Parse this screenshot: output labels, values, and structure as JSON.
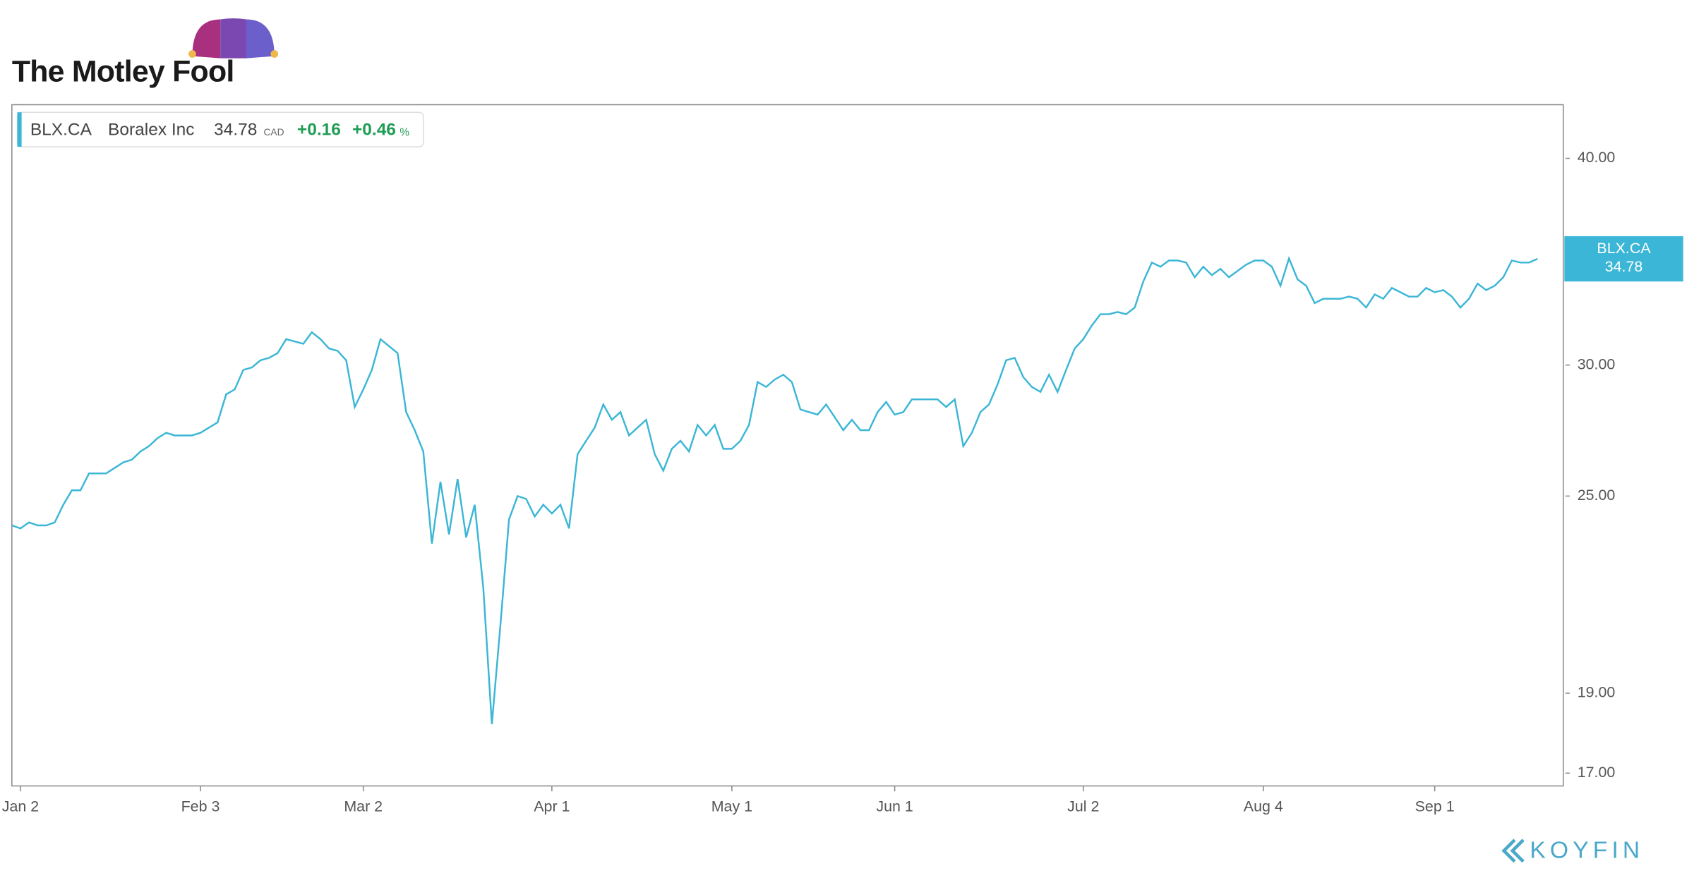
{
  "brand": "The Motley Fool",
  "footer": "KOYFIN",
  "chart_data": {
    "type": "line",
    "legend": {
      "name": "Boralex Inc",
      "currency": "CAD",
      "change": "+0.16",
      "change_pct": "+0.46",
      "pct_sign": "%"
    },
    "series": [
      {
        "name": "BLX.CA",
        "color": "#3bb6d6",
        "values": [
          24.0,
          23.9,
          24.1,
          24.0,
          24.0,
          24.1,
          24.7,
          25.2,
          25.2,
          25.8,
          25.8,
          25.8,
          26.0,
          26.2,
          26.3,
          26.6,
          26.8,
          27.1,
          27.3,
          27.2,
          27.2,
          27.2,
          27.3,
          27.5,
          27.7,
          28.8,
          29.0,
          29.8,
          29.9,
          30.2,
          30.3,
          30.5,
          31.1,
          31.0,
          30.9,
          31.4,
          31.1,
          30.7,
          30.6,
          30.2,
          28.3,
          29.0,
          29.8,
          31.1,
          30.8,
          30.5,
          28.1,
          27.4,
          26.6,
          23.4,
          25.5,
          23.7,
          25.6,
          23.6,
          24.7,
          22.0,
          18.2,
          20.9,
          24.2,
          25.0,
          24.9,
          24.3,
          24.7,
          24.4,
          24.7,
          23.9,
          26.5,
          27.0,
          27.5,
          28.4,
          27.8,
          28.1,
          27.2,
          27.5,
          27.8,
          26.5,
          25.9,
          26.7,
          27.0,
          26.6,
          27.6,
          27.2,
          27.6,
          26.7,
          26.7,
          27.0,
          27.6,
          29.3,
          29.1,
          29.4,
          29.6,
          29.3,
          28.2,
          28.1,
          28.0,
          28.4,
          27.9,
          27.4,
          27.8,
          27.4,
          27.4,
          28.1,
          28.5,
          28.0,
          28.1,
          28.6,
          28.6,
          28.6,
          28.6,
          28.3,
          28.6,
          26.8,
          27.3,
          28.1,
          28.4,
          29.2,
          30.2,
          30.3,
          29.5,
          29.1,
          28.9,
          29.6,
          28.9,
          29.8,
          30.7,
          31.1,
          31.7,
          32.2,
          32.2,
          32.3,
          32.2,
          32.5,
          33.7,
          34.6,
          34.4,
          34.7,
          34.7,
          34.6,
          33.9,
          34.4,
          34.0,
          34.3,
          33.9,
          34.2,
          34.5,
          34.7,
          34.7,
          34.4,
          33.5,
          34.8,
          33.8,
          33.5,
          32.7,
          32.9,
          32.9,
          32.9,
          33.0,
          32.9,
          32.5,
          33.1,
          32.9,
          33.4,
          33.2,
          33.0,
          33.0,
          33.4,
          33.2,
          33.3,
          33.0,
          32.5,
          32.9,
          33.6,
          33.3,
          33.5,
          33.9,
          34.7,
          34.6,
          34.6,
          34.78
        ]
      }
    ],
    "xlim": [
      0,
      181
    ],
    "xticks": [
      {
        "value": 1,
        "label": "Jan 2"
      },
      {
        "value": 22,
        "label": "Feb 3"
      },
      {
        "value": 41,
        "label": "Mar 2"
      },
      {
        "value": 63,
        "label": "Apr 1"
      },
      {
        "value": 84,
        "label": "May 1"
      },
      {
        "value": 103,
        "label": "Jun 1"
      },
      {
        "value": 125,
        "label": "Jul 2"
      },
      {
        "value": 146,
        "label": "Aug 4"
      },
      {
        "value": 166,
        "label": "Sep 1"
      }
    ],
    "ylim": [
      16.7,
      43.1
    ],
    "log_scale": true,
    "grid": false,
    "yticks": [
      {
        "value": 17,
        "label": "17.00"
      },
      {
        "value": 19,
        "label": "19.00"
      },
      {
        "value": 25,
        "label": "25.00"
      },
      {
        "value": 30,
        "label": "30.00"
      },
      {
        "value": 40,
        "label": "40.00"
      }
    ]
  }
}
